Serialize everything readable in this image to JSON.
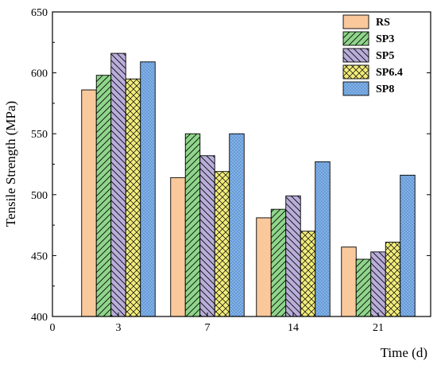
{
  "chart_data": {
    "type": "bar",
    "categories": [
      "3",
      "7",
      "14",
      "21"
    ],
    "x_axis_ticks": [
      "0",
      "3",
      "7",
      "14",
      "21"
    ],
    "xlabel": "Time (d)",
    "ylabel": "Tensile Strength (MPa)",
    "ylim": [
      400,
      650
    ],
    "y_ticks": [
      400,
      450,
      500,
      550,
      600,
      650
    ],
    "legend_position": "top-right",
    "grid": false,
    "series": [
      {
        "name": "RS",
        "values": [
          586,
          514,
          481,
          457
        ],
        "color": "#F9C89B",
        "pattern": "solid"
      },
      {
        "name": "SP3",
        "values": [
          598,
          550,
          488,
          447
        ],
        "color": "#8FD58B",
        "pattern": "diag-right"
      },
      {
        "name": "SP5",
        "values": [
          616,
          532,
          499,
          453
        ],
        "color": "#B9AEDA",
        "pattern": "diag-left"
      },
      {
        "name": "SP6.4",
        "values": [
          595,
          519,
          470,
          461
        ],
        "color": "#F2EC7C",
        "pattern": "cross"
      },
      {
        "name": "SP8",
        "values": [
          609,
          550,
          527,
          516
        ],
        "color": "#7FB2EA",
        "pattern": "dots"
      }
    ]
  }
}
